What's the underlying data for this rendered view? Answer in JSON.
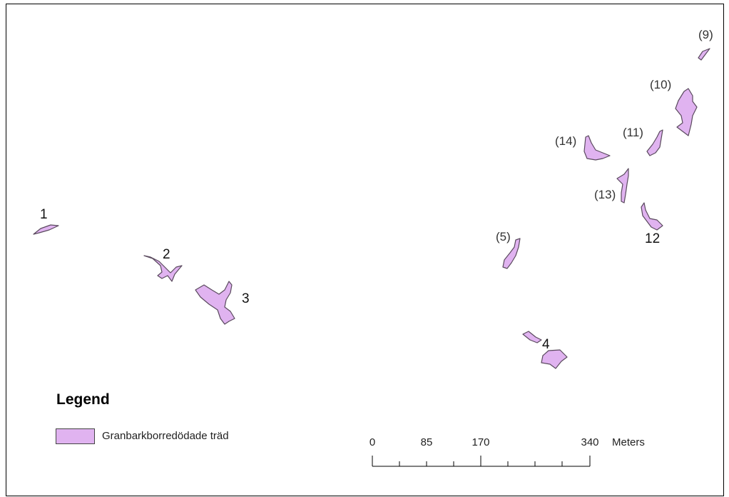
{
  "map": {
    "fill_color": "#e0b3f0",
    "stroke_color": "#5a4a5e",
    "features": [
      {
        "label": "1",
        "style": "bold"
      },
      {
        "label": "2",
        "style": "bold"
      },
      {
        "label": "3",
        "style": "bold"
      },
      {
        "label": "4",
        "style": "bold"
      },
      {
        "label": "(5)",
        "style": "paren"
      },
      {
        "label": "(9)",
        "style": "paren"
      },
      {
        "label": "(10)",
        "style": "paren"
      },
      {
        "label": "(11)",
        "style": "paren"
      },
      {
        "label": "12",
        "style": "bold"
      },
      {
        "label": "(13)",
        "style": "paren"
      },
      {
        "label": "(14)",
        "style": "paren"
      }
    ]
  },
  "legend": {
    "title": "Legend",
    "item_label": "Granbarkborredödade träd"
  },
  "scale_bar": {
    "ticks": [
      "0",
      "85",
      "170",
      "340"
    ],
    "unit": "Meters"
  }
}
